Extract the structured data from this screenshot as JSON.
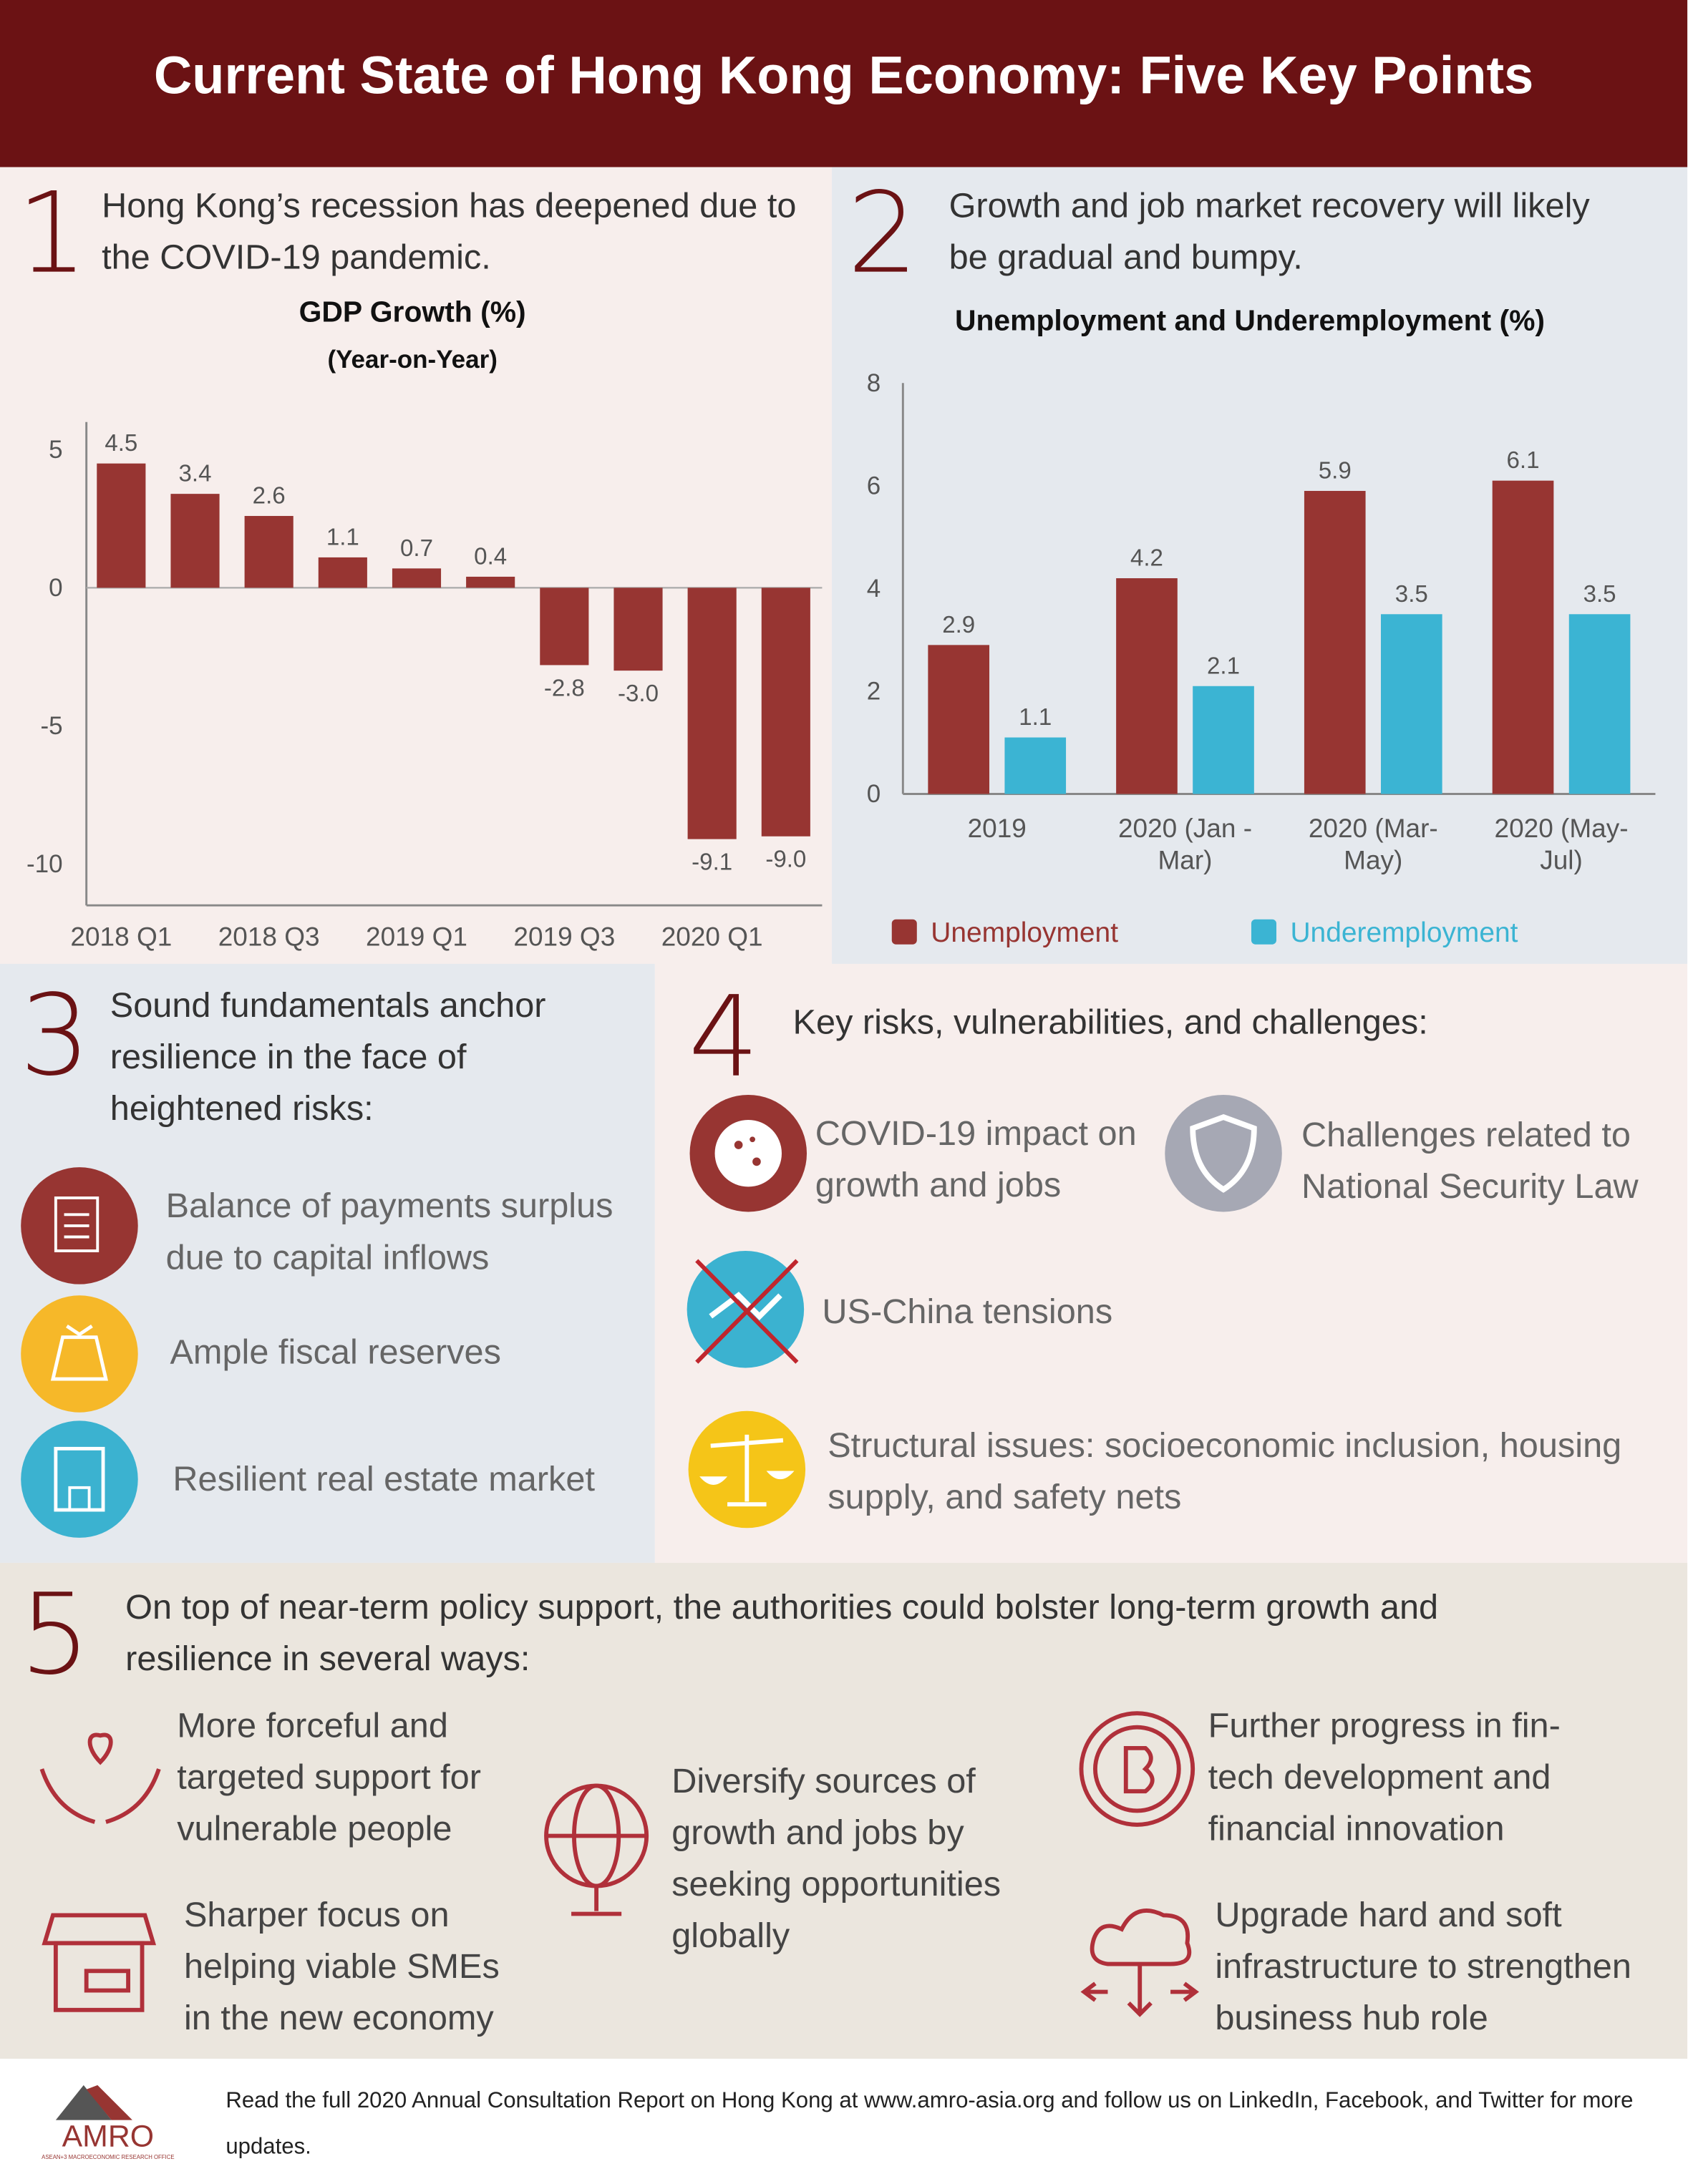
{
  "header": {
    "title": "Current State of Hong Kong Economy: Five Key Points"
  },
  "sections": [
    {
      "number": "1",
      "heading": "Hong Kong’s recession has deepened due to the COVID-19 pandemic."
    },
    {
      "number": "2",
      "heading": "Growth and job market recovery will likely be gradual and bumpy."
    },
    {
      "number": "3",
      "heading": "Sound fundamentals anchor resilience in the face of heightened risks:",
      "items": [
        "Balance of payments surplus due to capital inflows",
        "Ample fiscal reserves",
        "Resilient real estate market"
      ]
    },
    {
      "number": "4",
      "heading": "Key risks, vulnerabilities, and challenges:",
      "items": [
        "COVID-19 impact on growth and jobs",
        "Challenges related to National Security Law",
        "US-China tensions",
        "Structural issues: socioeconomic inclusion, housing supply, and safety nets"
      ]
    },
    {
      "number": "5",
      "heading": "On top of near-term policy support, the authorities could bolster long-term growth and resilience in several ways:",
      "items": [
        "More forceful and targeted support for vulnerable people",
        "Sharper focus on helping viable SMEs in the new economy",
        "Diversify sources of growth and jobs by seeking opportunities globally",
        "Further progress in fin-tech development and financial innovation",
        "Upgrade hard and soft infrastructure to strengthen business hub role"
      ]
    }
  ],
  "footer": {
    "logo": "AMRO",
    "logo_subtitle": "ASEAN+3 MACROECONOMIC RESEARCH OFFICE",
    "text": "Read the full 2020 Annual Consultation Report on Hong Kong at www.amro-asia.org and follow us on LinkedIn, Facebook, and Twitter for more updates."
  },
  "chart_data": [
    {
      "type": "bar",
      "title": "GDP Growth (%)",
      "subtitle": "(Year-on-Year)",
      "categories": [
        "2018 Q1",
        null,
        "2018 Q3",
        null,
        "2019 Q1",
        null,
        "2019 Q3",
        null,
        "2020 Q1",
        null
      ],
      "values": [
        4.5,
        3.4,
        2.6,
        1.1,
        0.7,
        0.4,
        -2.8,
        -3.0,
        -9.1,
        -9.0
      ],
      "value_labels": [
        "4.5",
        "3.4",
        "2.6",
        "1.1",
        "0.7",
        "0.4",
        "-2.8",
        "-3.0",
        "-9.1",
        "-9.0"
      ],
      "color": "#973532",
      "ylim": [
        -11.5,
        6
      ],
      "yticks": [
        -10,
        -5,
        0,
        5
      ],
      "grid": false
    },
    {
      "type": "bar",
      "title": "Unemployment and Underemployment (%)",
      "categories": [
        "2019",
        "2020 (Jan - Mar)",
        "2020 (Mar-May)",
        "2020 (May-Jul)"
      ],
      "series": [
        {
          "name": "Unemployment",
          "color": "#973532",
          "values": [
            2.9,
            4.2,
            5.9,
            6.1
          ]
        },
        {
          "name": "Underemployment",
          "color": "#3bb4d3",
          "values": [
            1.1,
            2.1,
            3.5,
            3.5
          ]
        }
      ],
      "ylim": [
        0,
        8
      ],
      "yticks": [
        0,
        2,
        4,
        6,
        8
      ],
      "grid": false,
      "legend": "bottom"
    }
  ]
}
